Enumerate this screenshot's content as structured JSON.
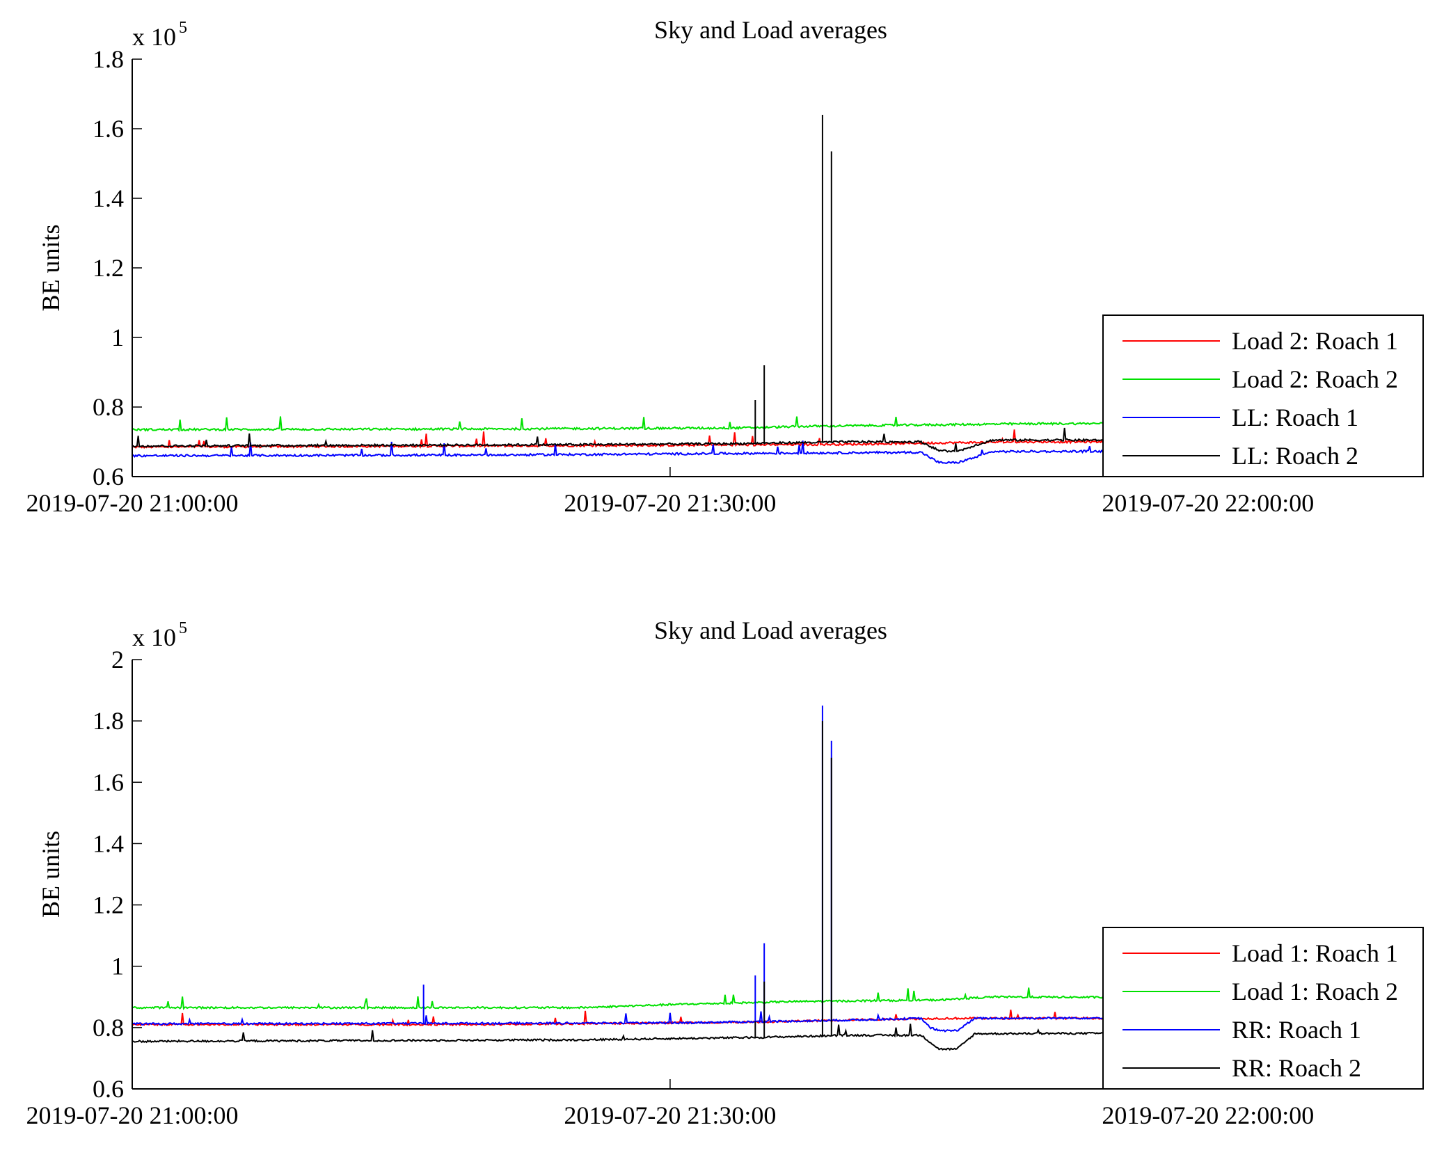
{
  "chart_data": [
    {
      "type": "line",
      "title": "Sky and Load averages",
      "ylabel": "BE units",
      "xlabel": "",
      "y_multiplier_prefix": "x 10",
      "y_multiplier_exponent": "5",
      "y_scale": 100000,
      "ylim": [
        0.6,
        1.8
      ],
      "yticks": [
        0.6,
        0.8,
        1,
        1.2,
        1.4,
        1.6,
        1.8
      ],
      "ytick_labels": [
        "0.6",
        "0.8",
        "1",
        "1.2",
        "1.4",
        "1.6",
        "1.8"
      ],
      "xlim": [
        "2019-07-20 21:00:00",
        "2019-07-20 22:12:00"
      ],
      "xticks": [
        "2019-07-20 21:00:00",
        "2019-07-20 21:30:00",
        "2019-07-20 22:00:00"
      ],
      "grid": false,
      "legend_position": "lower-right",
      "series": [
        {
          "name": "Load 2: Roach 1",
          "color": "#ff0000",
          "x": [
            "2019-07-20 21:00:00",
            "2019-07-20 21:30:00",
            "2019-07-20 21:40:00",
            "2019-07-20 21:45:00",
            "2019-07-20 21:50:00",
            "2019-07-20 22:12:00"
          ],
          "y": [
            0.685,
            0.69,
            0.693,
            0.697,
            0.7,
            0.7
          ]
        },
        {
          "name": "Load 2: Roach 2",
          "color": "#00e000",
          "x": [
            "2019-07-20 21:00:00",
            "2019-07-20 21:20:00",
            "2019-07-20 21:34:00",
            "2019-07-20 21:38:00",
            "2019-07-20 21:50:00",
            "2019-07-20 22:12:00"
          ],
          "y": [
            0.735,
            0.737,
            0.74,
            0.745,
            0.752,
            0.756
          ]
        },
        {
          "name": "LL: Roach 1",
          "color": "#0000ff",
          "x": [
            "2019-07-20 21:00:00",
            "2019-07-20 21:20:00",
            "2019-07-20 21:38:00",
            "2019-07-20 21:44:00",
            "2019-07-20 21:44:30",
            "2019-07-20 21:45:00",
            "2019-07-20 21:46:00",
            "2019-07-20 21:47:00",
            "2019-07-20 21:48:00",
            "2019-07-20 22:12:00"
          ],
          "y": [
            0.66,
            0.662,
            0.668,
            0.67,
            0.655,
            0.64,
            0.64,
            0.655,
            0.672,
            0.675
          ]
        },
        {
          "name": "LL: Roach 2",
          "color": "#000000",
          "x": [
            "2019-07-20 21:00:00",
            "2019-07-20 21:25:00",
            "2019-07-20 21:34:00",
            "2019-07-20 21:40:00",
            "2019-07-20 21:44:00",
            "2019-07-20 21:45:00",
            "2019-07-20 21:46:00",
            "2019-07-20 21:47:00",
            "2019-07-20 21:48:00",
            "2019-07-20 22:12:00"
          ],
          "y": [
            0.688,
            0.692,
            0.695,
            0.7,
            0.7,
            0.675,
            0.672,
            0.69,
            0.705,
            0.705
          ],
          "spikes": [
            {
              "x": "2019-07-20 21:34:45",
              "y": 0.82
            },
            {
              "x": "2019-07-20 21:35:15",
              "y": 0.92
            },
            {
              "x": "2019-07-20 21:38:30",
              "y": 1.64
            },
            {
              "x": "2019-07-20 21:39:00",
              "y": 1.535
            }
          ]
        }
      ]
    },
    {
      "type": "line",
      "title": "Sky and Load averages",
      "ylabel": "BE units",
      "xlabel": "",
      "y_multiplier_prefix": "x 10",
      "y_multiplier_exponent": "5",
      "y_scale": 100000,
      "ylim": [
        0.6,
        2.0
      ],
      "yticks": [
        0.6,
        0.8,
        1,
        1.2,
        1.4,
        1.6,
        1.8,
        2
      ],
      "ytick_labels": [
        "0.6",
        "0.8",
        "1",
        "1.2",
        "1.4",
        "1.6",
        "1.8",
        "2"
      ],
      "xlim": [
        "2019-07-20 21:00:00",
        "2019-07-20 22:12:00"
      ],
      "xticks": [
        "2019-07-20 21:00:00",
        "2019-07-20 21:30:00",
        "2019-07-20 22:00:00"
      ],
      "grid": false,
      "legend_position": "lower-right",
      "series": [
        {
          "name": "Load 1: Roach 1",
          "color": "#ff0000",
          "x": [
            "2019-07-20 21:00:00",
            "2019-07-20 21:20:00",
            "2019-07-20 21:35:00",
            "2019-07-20 21:40:00",
            "2019-07-20 21:45:00",
            "2019-07-20 22:12:00"
          ],
          "y": [
            0.81,
            0.81,
            0.818,
            0.825,
            0.83,
            0.832
          ]
        },
        {
          "name": "Load 1: Roach 2",
          "color": "#00e000",
          "x": [
            "2019-07-20 21:00:00",
            "2019-07-20 21:25:00",
            "2019-07-20 21:30:00",
            "2019-07-20 21:37:00",
            "2019-07-20 21:45:00",
            "2019-07-20 21:48:00",
            "2019-07-20 22:12:00"
          ],
          "y": [
            0.865,
            0.865,
            0.875,
            0.885,
            0.89,
            0.9,
            0.895
          ]
        },
        {
          "name": "RR: Roach 1",
          "color": "#0000ff",
          "x": [
            "2019-07-20 21:00:00",
            "2019-07-20 21:30:00",
            "2019-07-20 21:38:00",
            "2019-07-20 21:44:00",
            "2019-07-20 21:44:30",
            "2019-07-20 21:45:00",
            "2019-07-20 21:46:00",
            "2019-07-20 21:47:00",
            "2019-07-20 22:12:00"
          ],
          "y": [
            0.812,
            0.815,
            0.822,
            0.83,
            0.8,
            0.79,
            0.79,
            0.83,
            0.835
          ],
          "spikes": [
            {
              "x": "2019-07-20 21:16:15",
              "y": 0.94
            },
            {
              "x": "2019-07-20 21:34:45",
              "y": 0.97
            },
            {
              "x": "2019-07-20 21:35:15",
              "y": 1.075
            },
            {
              "x": "2019-07-20 21:38:30",
              "y": 1.85
            },
            {
              "x": "2019-07-20 21:39:00",
              "y": 1.735
            }
          ]
        },
        {
          "name": "RR: Roach 2",
          "color": "#000000",
          "x": [
            "2019-07-20 21:00:00",
            "2019-07-20 21:25:00",
            "2019-07-20 21:35:00",
            "2019-07-20 21:40:00",
            "2019-07-20 21:44:00",
            "2019-07-20 21:45:00",
            "2019-07-20 21:46:00",
            "2019-07-20 21:47:00",
            "2019-07-20 22:12:00"
          ],
          "y": [
            0.755,
            0.76,
            0.768,
            0.775,
            0.775,
            0.73,
            0.73,
            0.78,
            0.785
          ],
          "spikes": [
            {
              "x": "2019-07-20 21:34:45",
              "y": 0.82
            },
            {
              "x": "2019-07-20 21:35:15",
              "y": 0.95
            },
            {
              "x": "2019-07-20 21:38:30",
              "y": 1.8
            },
            {
              "x": "2019-07-20 21:39:00",
              "y": 1.68
            }
          ]
        }
      ]
    }
  ]
}
